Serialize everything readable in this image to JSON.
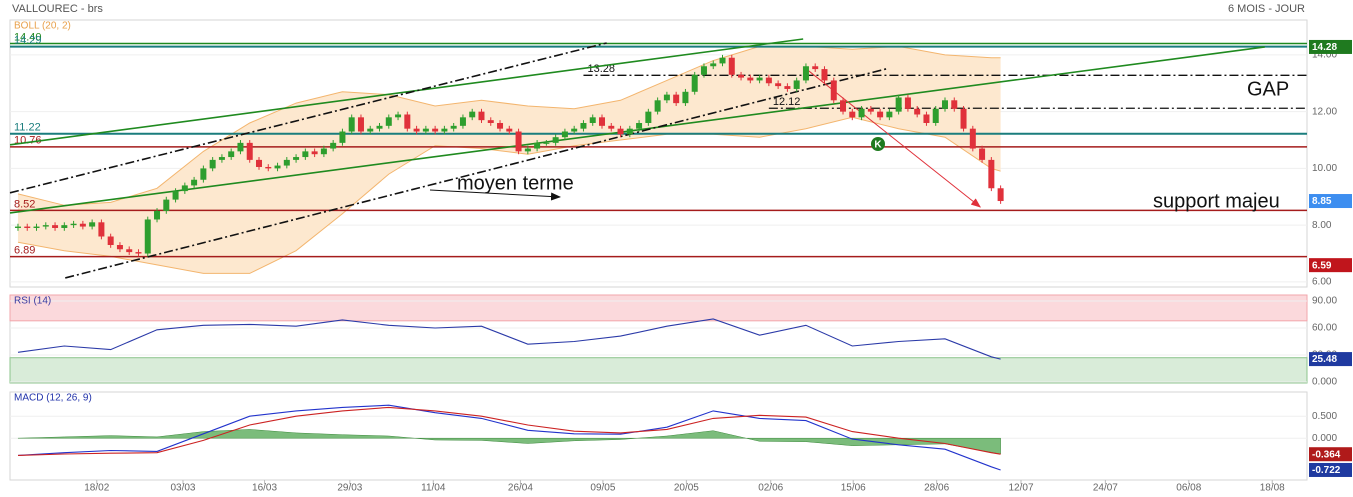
{
  "chart_data": [
    {
      "type": "candlestick",
      "title": "VALLOUREC - brs",
      "period": "6 MOIS - JOUR",
      "indicator": "BOLL (20, 2)",
      "indicator_color": "#e8a04a",
      "xlim": [
        -0.86,
        139.05
      ],
      "ylim": [
        5.82,
        15.23
      ],
      "grid": true,
      "yticks": [
        {
          "value": 14,
          "label": "14.00"
        },
        {
          "value": 12,
          "label": "12.00"
        },
        {
          "value": 10,
          "label": "10.00"
        },
        {
          "value": 8,
          "label": "8.00"
        },
        {
          "value": 6,
          "label": "6.00"
        }
      ],
      "up_color": "#2e9e2e",
      "down_color": "#e0313b",
      "open": [
        7.9,
        7.95,
        7.9,
        7.95,
        8.0,
        7.9,
        8.0,
        8.05,
        7.95,
        8.1,
        7.6,
        7.3,
        7.15,
        7.05,
        7.0,
        8.2,
        8.5,
        8.9,
        9.2,
        9.4,
        9.6,
        10.0,
        10.3,
        10.4,
        10.6,
        10.9,
        10.3,
        10.05,
        10.0,
        10.1,
        10.3,
        10.4,
        10.6,
        10.5,
        10.7,
        10.9,
        11.3,
        11.8,
        11.3,
        11.4,
        11.5,
        11.8,
        11.9,
        11.4,
        11.3,
        11.4,
        11.3,
        11.4,
        11.5,
        11.8,
        12.0,
        11.7,
        11.6,
        11.4,
        11.3,
        10.6,
        10.7,
        10.9,
        10.9,
        11.1,
        11.3,
        11.4,
        11.6,
        11.8,
        11.5,
        11.4,
        11.2,
        11.4,
        11.6,
        12.0,
        12.4,
        12.6,
        12.3,
        12.7,
        13.3,
        13.6,
        13.7,
        13.9,
        13.3,
        13.2,
        13.1,
        13.2,
        13.0,
        12.9,
        12.8,
        13.1,
        13.6,
        13.5,
        13.1,
        12.4,
        12.0,
        11.8,
        12.1,
        12.0,
        11.8,
        12.0,
        12.5,
        12.1,
        11.9,
        11.6,
        12.1,
        12.4,
        12.1,
        11.4,
        10.7,
        10.3,
        9.3
      ],
      "high": [
        8.05,
        8.05,
        8.05,
        8.1,
        8.1,
        8.1,
        8.15,
        8.15,
        8.2,
        8.2,
        7.7,
        7.4,
        7.25,
        7.15,
        8.3,
        8.6,
        9.0,
        9.3,
        9.5,
        9.7,
        10.1,
        10.4,
        10.5,
        10.7,
        11.0,
        11.0,
        10.4,
        10.15,
        10.2,
        10.4,
        10.5,
        10.7,
        10.7,
        10.8,
        11.0,
        11.4,
        11.9,
        11.9,
        11.5,
        11.6,
        11.9,
        12.0,
        12.0,
        11.5,
        11.5,
        11.5,
        11.5,
        11.6,
        11.9,
        12.1,
        12.1,
        11.8,
        11.7,
        11.5,
        11.4,
        10.8,
        11.0,
        11.0,
        11.2,
        11.4,
        11.5,
        11.7,
        11.9,
        11.9,
        11.6,
        11.5,
        11.5,
        11.7,
        12.1,
        12.5,
        12.7,
        12.7,
        12.8,
        13.4,
        13.7,
        13.8,
        14.0,
        14.0,
        13.4,
        13.3,
        13.3,
        13.3,
        13.1,
        13.0,
        13.2,
        13.7,
        13.7,
        13.6,
        13.2,
        12.5,
        12.1,
        12.2,
        12.2,
        12.1,
        12.1,
        12.6,
        12.6,
        12.2,
        12.0,
        12.2,
        12.5,
        12.5,
        12.2,
        11.5,
        10.8,
        10.4,
        9.4
      ],
      "low": [
        7.8,
        7.8,
        7.8,
        7.85,
        7.8,
        7.8,
        7.9,
        7.85,
        7.85,
        7.5,
        7.2,
        7.05,
        6.95,
        6.9,
        6.9,
        8.1,
        8.4,
        8.8,
        9.1,
        9.3,
        9.5,
        9.9,
        10.2,
        10.3,
        10.5,
        10.2,
        9.95,
        9.9,
        9.9,
        10.0,
        10.2,
        10.3,
        10.4,
        10.4,
        10.6,
        10.8,
        11.2,
        11.2,
        11.2,
        11.3,
        11.4,
        11.7,
        11.3,
        11.2,
        11.2,
        11.2,
        11.2,
        11.3,
        11.4,
        11.7,
        11.6,
        11.5,
        11.3,
        11.2,
        10.5,
        10.5,
        10.6,
        10.8,
        10.8,
        11.0,
        11.2,
        11.3,
        11.5,
        11.4,
        11.3,
        11.1,
        11.1,
        11.3,
        11.5,
        11.9,
        12.3,
        12.2,
        12.2,
        12.6,
        13.2,
        13.5,
        13.6,
        13.2,
        13.1,
        13.0,
        13.0,
        12.9,
        12.8,
        12.7,
        12.7,
        13.0,
        13.4,
        13.0,
        12.3,
        11.9,
        11.7,
        11.7,
        11.9,
        11.7,
        11.7,
        11.9,
        12.0,
        11.8,
        11.5,
        11.5,
        12.0,
        12.0,
        11.3,
        10.6,
        10.2,
        9.2,
        8.75
      ],
      "close": [
        7.95,
        7.9,
        7.95,
        8.0,
        7.9,
        8.0,
        8.05,
        7.95,
        8.1,
        7.6,
        7.3,
        7.15,
        7.05,
        7.0,
        8.2,
        8.5,
        8.9,
        9.2,
        9.4,
        9.6,
        10.0,
        10.3,
        10.4,
        10.6,
        10.9,
        10.3,
        10.05,
        10.0,
        10.1,
        10.3,
        10.4,
        10.6,
        10.5,
        10.7,
        10.9,
        11.3,
        11.8,
        11.3,
        11.4,
        11.5,
        11.8,
        11.9,
        11.4,
        11.3,
        11.4,
        11.3,
        11.4,
        11.5,
        11.8,
        12.0,
        11.7,
        11.6,
        11.4,
        11.3,
        10.6,
        10.7,
        10.9,
        10.9,
        11.1,
        11.3,
        11.4,
        11.6,
        11.8,
        11.5,
        11.4,
        11.2,
        11.4,
        11.6,
        12.0,
        12.4,
        12.6,
        12.3,
        12.7,
        13.3,
        13.6,
        13.7,
        13.9,
        13.3,
        13.2,
        13.1,
        13.2,
        13.0,
        12.9,
        12.8,
        13.1,
        13.6,
        13.5,
        13.1,
        12.4,
        12.0,
        11.8,
        12.1,
        12.0,
        11.8,
        12.0,
        12.5,
        12.1,
        11.9,
        11.6,
        12.1,
        12.4,
        12.1,
        11.4,
        10.7,
        10.3,
        9.3,
        8.85
      ],
      "bollinger": {
        "x": [
          0,
          5,
          10,
          15,
          20,
          25,
          30,
          35,
          40,
          45,
          50,
          55,
          60,
          65,
          70,
          75,
          80,
          85,
          90,
          95,
          100,
          105,
          106
        ],
        "upper": [
          9.1,
          8.7,
          8.8,
          9.3,
          10.6,
          11.6,
          12.3,
          12.7,
          12.6,
          12.2,
          12.4,
          12.2,
          12.1,
          12.4,
          13.1,
          13.8,
          14.3,
          14.3,
          14.2,
          14.3,
          14.0,
          13.9,
          13.9
        ],
        "lower": [
          7.4,
          7.1,
          6.9,
          6.6,
          6.3,
          6.3,
          7.1,
          8.4,
          9.8,
          10.8,
          10.7,
          10.5,
          10.8,
          11.0,
          11.2,
          11.2,
          11.1,
          11.4,
          11.8,
          11.4,
          11.1,
          10.0,
          9.9
        ],
        "color": "#f3b56e",
        "fill": "#fde8cf"
      },
      "levels": [
        {
          "value": 14.4,
          "label": "14.40",
          "color": "#1f8a1f",
          "width": 1.5
        },
        {
          "value": 14.29,
          "color": "#1a7d7d",
          "width": 2
        },
        {
          "value": 11.22,
          "color": "#1a7d7d",
          "width": 2
        },
        {
          "value": 10.76,
          "color": "#a51c1c",
          "width": 1.5
        },
        {
          "value": 8.52,
          "color": "#a51c1c",
          "width": 1.5
        },
        {
          "value": 6.89,
          "color": "#a51c1c",
          "width": 1.5
        },
        {
          "value": 13.28,
          "color": "#111111",
          "width": 1.3,
          "style": "dashdot",
          "from": 61
        },
        {
          "value": 12.12,
          "color": "#111111",
          "width": 1.3,
          "style": "dashdot",
          "from": 81
        }
      ],
      "trendlines": [
        {
          "x": [
            -0.86,
            84.7
          ],
          "y": [
            10.83,
            14.56
          ],
          "color": "#1f8a1f",
          "style": "solid"
        },
        {
          "x": [
            -0.86,
            134.5
          ],
          "y": [
            8.43,
            14.28
          ],
          "color": "#1f8a1f",
          "style": "solid"
        },
        {
          "x": [
            -0.86,
            63.5
          ],
          "y": [
            9.14,
            14.42
          ],
          "color": "#111111",
          "style": "dashdot"
        },
        {
          "x": [
            5.1,
            93.7
          ],
          "y": [
            6.14,
            13.51
          ],
          "color": "#111111",
          "style": "dashdot"
        },
        {
          "x": [
            84.9,
            103.8
          ],
          "y": [
            13.54,
            8.64
          ],
          "color": "#e0313b",
          "style": "solid",
          "arrow": true
        }
      ],
      "annotations": [
        "GAP",
        "moyen terme",
        "support majeu"
      ],
      "event_marker": "K",
      "tags": [
        {
          "value": 14.28,
          "color": "#1f7a1f"
        },
        {
          "value": 8.85,
          "color": "#3d8ef0"
        },
        {
          "value": 6.59,
          "color": "#c0151c"
        }
      ]
    },
    {
      "type": "line",
      "indicator": "RSI (14)",
      "indicator_color": "#3a3aa0",
      "xlim": [
        -0.86,
        139.05
      ],
      "ylim": [
        -1.1,
        96.7
      ],
      "grid": true,
      "yticks": [
        {
          "value": 90,
          "label": "90.00"
        },
        {
          "value": 60,
          "label": "60.00"
        },
        {
          "value": 30,
          "label": "30.00"
        },
        {
          "value": 0,
          "label": "0.000"
        }
      ],
      "bands": [
        {
          "from": 68,
          "to": 96.7,
          "color": "#fbd9dc",
          "border": "#f2a6ab"
        },
        {
          "from": -1.1,
          "to": 27,
          "color": "#d9ecd9",
          "border": "#8cc48c"
        }
      ],
      "x": [
        0,
        5,
        10,
        15,
        20,
        25,
        30,
        35,
        40,
        45,
        50,
        55,
        60,
        65,
        70,
        75,
        80,
        85,
        90,
        95,
        100,
        105,
        106
      ],
      "series": [
        {
          "color": "#2b3aa8",
          "values": [
            33,
            40,
            36,
            58,
            63,
            64,
            62,
            69,
            63,
            60,
            62,
            42,
            45,
            51,
            62,
            70,
            52,
            63,
            40,
            45,
            48,
            28,
            25.48
          ]
        }
      ],
      "tags": [
        {
          "value": 25.48,
          "color": "#1f3aa0"
        }
      ]
    },
    {
      "type": "line",
      "indicator": "MACD (12, 26, 9)",
      "indicator_color": "#2233aa",
      "xlim": [
        -0.86,
        139.05
      ],
      "ylim": [
        -0.95,
        1.05
      ],
      "grid": true,
      "yticks": [
        {
          "value": 0.5,
          "label": "0.500"
        },
        {
          "value": 0,
          "label": "0.000"
        }
      ],
      "x": [
        0,
        5,
        10,
        15,
        20,
        25,
        30,
        35,
        40,
        45,
        50,
        55,
        60,
        65,
        70,
        75,
        80,
        85,
        90,
        95,
        100,
        105,
        106
      ],
      "histogram": {
        "color": "#5aab5a",
        "values": [
          0.0,
          0.03,
          0.06,
          0.03,
          0.15,
          0.2,
          0.12,
          0.08,
          0.05,
          -0.04,
          -0.05,
          -0.12,
          -0.06,
          -0.03,
          0.05,
          0.17,
          -0.07,
          -0.08,
          -0.17,
          -0.15,
          -0.13,
          -0.32,
          -0.358
        ]
      },
      "series": [
        {
          "color": "#2233cc",
          "values": [
            -0.39,
            -0.33,
            -0.28,
            -0.3,
            0.1,
            0.5,
            0.62,
            0.7,
            0.75,
            0.58,
            0.45,
            0.18,
            0.1,
            0.09,
            0.25,
            0.62,
            0.45,
            0.4,
            -0.02,
            -0.15,
            -0.25,
            -0.65,
            -0.722
          ]
        },
        {
          "color": "#cc2222",
          "values": [
            -0.39,
            -0.36,
            -0.34,
            -0.33,
            -0.05,
            0.3,
            0.5,
            0.62,
            0.7,
            0.62,
            0.5,
            0.3,
            0.16,
            0.12,
            0.2,
            0.45,
            0.52,
            0.48,
            0.15,
            0.0,
            -0.12,
            -0.33,
            -0.364
          ]
        }
      ],
      "xticks": [
        {
          "value": 8.5,
          "label": "18/02"
        },
        {
          "value": 17.8,
          "label": "03/03"
        },
        {
          "value": 26.6,
          "label": "16/03"
        },
        {
          "value": 35.8,
          "label": "29/03"
        },
        {
          "value": 44.8,
          "label": "11/04"
        },
        {
          "value": 54.2,
          "label": "26/04"
        },
        {
          "value": 63.1,
          "label": "09/05"
        },
        {
          "value": 72.1,
          "label": "20/05"
        },
        {
          "value": 81.2,
          "label": "02/06"
        },
        {
          "value": 90.1,
          "label": "15/06"
        },
        {
          "value": 99.1,
          "label": "28/06"
        },
        {
          "value": 108.2,
          "label": "12/07"
        },
        {
          "value": 117.3,
          "label": "24/07"
        },
        {
          "value": 126.3,
          "label": "06/08"
        },
        {
          "value": 135.3,
          "label": "18/08"
        }
      ],
      "tags": [
        {
          "value": -0.364,
          "color": "#b01a1a"
        },
        {
          "value": -0.722,
          "color": "#1f3aa0"
        }
      ]
    }
  ]
}
